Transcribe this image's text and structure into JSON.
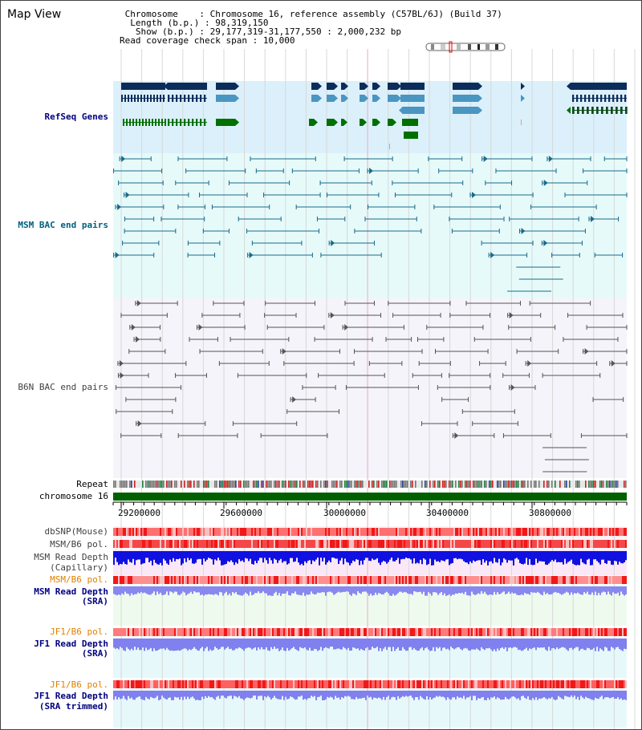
{
  "title": "Map View",
  "info": {
    "chromosome_label": " Chromosome    : ",
    "chromosome_value": "Chromosome 16, reference assembly (C57BL/6J) (Build 37)",
    "length_label": "  Length (b.p.) : ",
    "length_value": "98,319,150",
    "show_label": "   Show (b.p.) : ",
    "show_value": "29,177,319-31,177,550 : 2,000,232 bp",
    "coverage_label": "Read coverage check span : ",
    "coverage_value": "10,000"
  },
  "tracks": {
    "refseq": "RefSeq Genes",
    "msm_bac": "MSM BAC end pairs",
    "b6n_bac": "B6N BAC end pairs",
    "repeat": "Repeat",
    "chromosome": "chromosome 16",
    "dbsnp": "dbSNP(Mouse)",
    "msm_b6_pol": "MSM/B6 pol.",
    "msm_depth_cap_1": "MSM Read Depth",
    "msm_depth_cap_2": "(Capillary)",
    "msm_b6_pol2": "MSM/B6 pol.",
    "msm_depth_sra_1": "MSM Read Depth",
    "msm_depth_sra_2": "(SRA)",
    "jf1_b6_pol": "JF1/B6 pol.",
    "jf1_depth_sra_1": "JF1 Read Depth",
    "jf1_depth_sra_2": "(SRA)",
    "jf1_b6_pol2": "JF1/B6 pol.",
    "jf1_depth_trim_1": "JF1 Read Depth",
    "jf1_depth_trim_2": "(SRA trimmed)"
  },
  "axis": {
    "ticks": [
      "29200000",
      "29600000",
      "30000000",
      "30400000",
      "30800000"
    ]
  },
  "colors": {
    "refseq_bg": "#dbf0fa",
    "msm_bg": "#e6fafa",
    "b6n_bg": "#f4f4fa",
    "label_blue": "#000080",
    "label_teal": "#006080",
    "label_gray": "#404040",
    "label_orange": "#e08000",
    "gene_dark": "#0c2d5a",
    "gene_light": "#4a96c0",
    "gene_green": "#007000",
    "msm_line": "#1a6a8a",
    "b6n_line": "#555555",
    "chrom_green": "#006000"
  }
}
